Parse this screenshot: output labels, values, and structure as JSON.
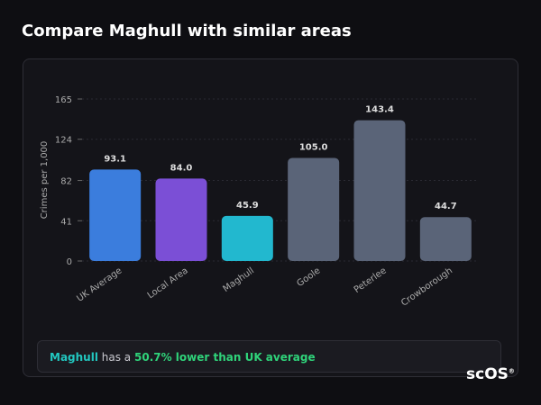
{
  "page_title": "Compare Maghull with similar areas",
  "chart_data": {
    "type": "bar",
    "y_label": "Crimes per 1,000",
    "categories": [
      "UK Average",
      "Local Area",
      "Maghull",
      "Goole",
      "Peterlee",
      "Crowborough"
    ],
    "values": [
      93.1,
      84,
      45.9,
      105,
      143.4,
      44.7
    ],
    "value_labels": [
      "93.1",
      "84.0",
      "45.9",
      "105.0",
      "143.4",
      "44.7"
    ],
    "colors": [
      "#3b7ddd",
      "#7b4fd6",
      "#22b8cf",
      "#5a6478",
      "#5a6478",
      "#5a6478"
    ],
    "ylim": [
      0,
      165
    ],
    "yticks": [
      0,
      41,
      82,
      124,
      165
    ],
    "grid": true
  },
  "summary": {
    "area": "Maghull",
    "text": "has a",
    "highlight": "50.7% lower than UK average"
  },
  "logo": {
    "text": "scOS",
    "mark": "®"
  }
}
